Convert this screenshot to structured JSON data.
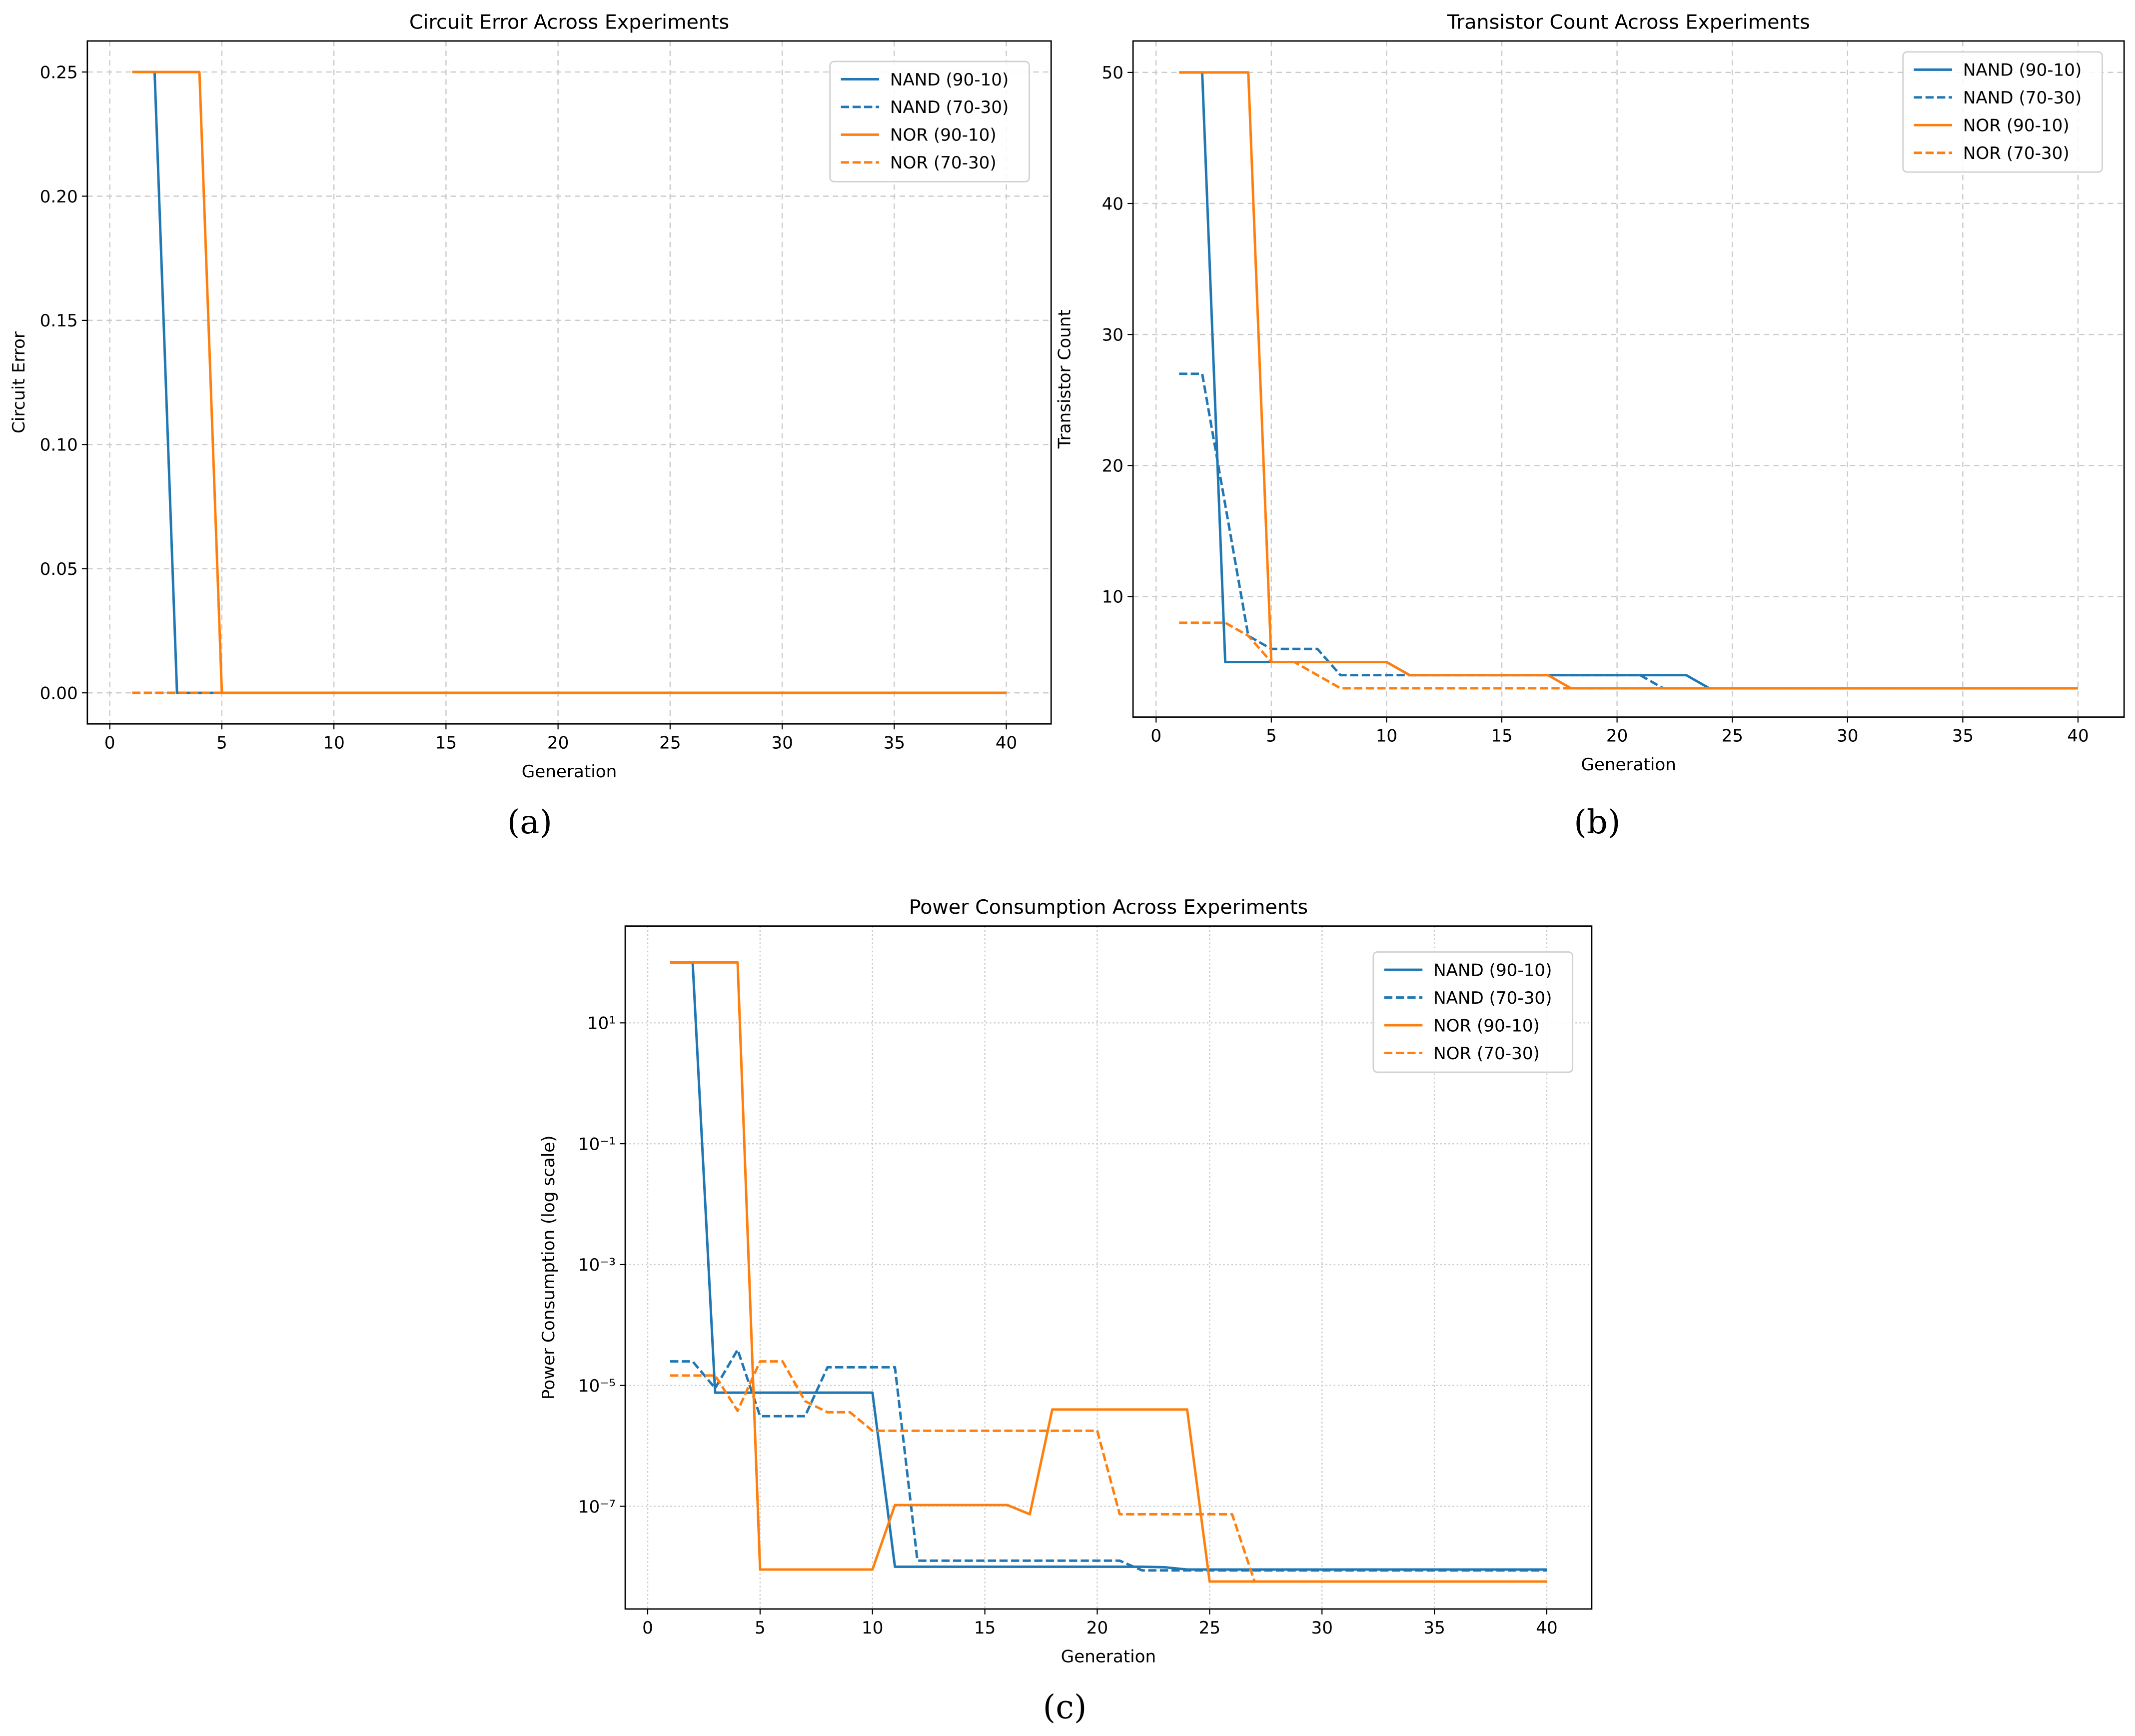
{
  "chart_data": [
    {
      "type": "line",
      "title": "Circuit Error Across Experiments",
      "xlabel": "Generation",
      "ylabel": "Circuit Error",
      "caption": "(a)",
      "x": [
        1,
        2,
        3,
        4,
        5,
        6,
        7,
        8,
        9,
        10,
        11,
        12,
        13,
        14,
        15,
        16,
        17,
        18,
        19,
        20,
        21,
        22,
        23,
        24,
        25,
        26,
        27,
        28,
        29,
        30,
        31,
        32,
        33,
        34,
        35,
        36,
        37,
        38,
        39,
        40
      ],
      "xlim": [
        -1,
        42
      ],
      "ylim": [
        -0.0125,
        0.2625
      ],
      "yscale": "linear",
      "xticks": [
        0,
        5,
        10,
        15,
        20,
        25,
        30,
        35,
        40
      ],
      "yticks": [
        0,
        0.05,
        0.1,
        0.15,
        0.2,
        0.25
      ],
      "yticklabels": [
        "0.00",
        "0.05",
        "0.10",
        "0.15",
        "0.20",
        "0.25"
      ],
      "grid": "dashed",
      "legend": "top-right",
      "series": [
        {
          "name": "NAND (90-10)",
          "color": "#1f77b4",
          "style": "solid",
          "values": [
            0.25,
            0.25,
            0,
            0,
            0,
            0,
            0,
            0,
            0,
            0,
            0,
            0,
            0,
            0,
            0,
            0,
            0,
            0,
            0,
            0,
            0,
            0,
            0,
            0,
            0,
            0,
            0,
            0,
            0,
            0,
            0,
            0,
            0,
            0,
            0,
            0,
            0,
            0,
            0,
            0
          ]
        },
        {
          "name": "NAND (70-30)",
          "color": "#1f77b4",
          "style": "dashed",
          "values": [
            0,
            0,
            0,
            0,
            0,
            0,
            0,
            0,
            0,
            0,
            0,
            0,
            0,
            0,
            0,
            0,
            0,
            0,
            0,
            0,
            0,
            0,
            0,
            0,
            0,
            0,
            0,
            0,
            0,
            0,
            0,
            0,
            0,
            0,
            0,
            0,
            0,
            0,
            0,
            0
          ]
        },
        {
          "name": "NOR (90-10)",
          "color": "#ff7f0e",
          "style": "solid",
          "values": [
            0.25,
            0.25,
            0.25,
            0.25,
            0,
            0,
            0,
            0,
            0,
            0,
            0,
            0,
            0,
            0,
            0,
            0,
            0,
            0,
            0,
            0,
            0,
            0,
            0,
            0,
            0,
            0,
            0,
            0,
            0,
            0,
            0,
            0,
            0,
            0,
            0,
            0,
            0,
            0,
            0,
            0
          ]
        },
        {
          "name": "NOR (70-30)",
          "color": "#ff7f0e",
          "style": "dashed",
          "values": [
            0,
            0,
            0,
            0,
            0,
            0,
            0,
            0,
            0,
            0,
            0,
            0,
            0,
            0,
            0,
            0,
            0,
            0,
            0,
            0,
            0,
            0,
            0,
            0,
            0,
            0,
            0,
            0,
            0,
            0,
            0,
            0,
            0,
            0,
            0,
            0,
            0,
            0,
            0,
            0
          ]
        }
      ]
    },
    {
      "type": "line",
      "title": "Transistor Count Across Experiments",
      "xlabel": "Generation",
      "ylabel": "Transistor Count",
      "caption": "(b)",
      "x": [
        1,
        2,
        3,
        4,
        5,
        6,
        7,
        8,
        9,
        10,
        11,
        12,
        13,
        14,
        15,
        16,
        17,
        18,
        19,
        20,
        21,
        22,
        23,
        24,
        25,
        26,
        27,
        28,
        29,
        30,
        31,
        32,
        33,
        34,
        35,
        36,
        37,
        38,
        39,
        40
      ],
      "xlim": [
        -1,
        42
      ],
      "ylim": [
        0.8,
        52.4
      ],
      "yscale": "linear",
      "xticks": [
        0,
        5,
        10,
        15,
        20,
        25,
        30,
        35,
        40
      ],
      "yticks": [
        10,
        20,
        30,
        40,
        50
      ],
      "yticklabels": [
        "10",
        "20",
        "30",
        "40",
        "50"
      ],
      "grid": "dashed",
      "legend": "top-right",
      "series": [
        {
          "name": "NAND (90-10)",
          "color": "#1f77b4",
          "style": "solid",
          "values": [
            50,
            50,
            5,
            5,
            5,
            5,
            5,
            5,
            5,
            5,
            4,
            4,
            4,
            4,
            4,
            4,
            4,
            4,
            4,
            4,
            4,
            4,
            4,
            3,
            3,
            3,
            3,
            3,
            3,
            3,
            3,
            3,
            3,
            3,
            3,
            3,
            3,
            3,
            3,
            3
          ]
        },
        {
          "name": "NAND (70-30)",
          "color": "#1f77b4",
          "style": "dashed",
          "values": [
            27,
            27,
            17,
            7,
            6,
            6,
            6,
            4,
            4,
            4,
            4,
            4,
            4,
            4,
            4,
            4,
            4,
            4,
            4,
            4,
            4,
            3,
            3,
            3,
            3,
            3,
            3,
            3,
            3,
            3,
            3,
            3,
            3,
            3,
            3,
            3,
            3,
            3,
            3,
            3
          ]
        },
        {
          "name": "NOR (90-10)",
          "color": "#ff7f0e",
          "style": "solid",
          "values": [
            50,
            50,
            50,
            50,
            5,
            5,
            5,
            5,
            5,
            5,
            4,
            4,
            4,
            4,
            4,
            4,
            4,
            3,
            3,
            3,
            3,
            3,
            3,
            3,
            3,
            3,
            3,
            3,
            3,
            3,
            3,
            3,
            3,
            3,
            3,
            3,
            3,
            3,
            3,
            3
          ]
        },
        {
          "name": "NOR (70-30)",
          "color": "#ff7f0e",
          "style": "dashed",
          "values": [
            8,
            8,
            8,
            7,
            5,
            5,
            4,
            3,
            3,
            3,
            3,
            3,
            3,
            3,
            3,
            3,
            3,
            3,
            3,
            3,
            3,
            3,
            3,
            3,
            3,
            3,
            3,
            3,
            3,
            3,
            3,
            3,
            3,
            3,
            3,
            3,
            3,
            3,
            3,
            3
          ]
        }
      ]
    },
    {
      "type": "line",
      "title": "Power Consumption Across Experiments",
      "xlabel": "Generation",
      "ylabel": "Power Consumption (log scale)",
      "caption": "(c)",
      "x": [
        1,
        2,
        3,
        4,
        5,
        6,
        7,
        8,
        9,
        10,
        11,
        12,
        13,
        14,
        15,
        16,
        17,
        18,
        19,
        20,
        21,
        22,
        23,
        24,
        25,
        26,
        27,
        28,
        29,
        30,
        31,
        32,
        33,
        34,
        35,
        36,
        37,
        38,
        39,
        40
      ],
      "xlim": [
        -1,
        42
      ],
      "ylim": [
        2e-09,
        400
      ],
      "yscale": "log",
      "xticks": [
        0,
        5,
        10,
        15,
        20,
        25,
        30,
        35,
        40
      ],
      "yticks": [
        1e-07,
        1e-05,
        0.001,
        0.1,
        10
      ],
      "yticklabels": [
        "10⁻⁷",
        "10⁻⁵",
        "10⁻³",
        "10⁻¹",
        "10¹"
      ],
      "grid": "dotted",
      "legend": "top-right",
      "series": [
        {
          "name": "NAND (90-10)",
          "color": "#1f77b4",
          "style": "solid",
          "values": [
            100,
            100,
            7.6e-06,
            7.6e-06,
            7.6e-06,
            7.6e-06,
            7.6e-06,
            7.6e-06,
            7.6e-06,
            7.6e-06,
            1e-08,
            1e-08,
            1e-08,
            1e-08,
            1e-08,
            1e-08,
            1e-08,
            1e-08,
            1e-08,
            1e-08,
            1e-08,
            1e-08,
            9.8e-09,
            9e-09,
            9e-09,
            9e-09,
            9e-09,
            9e-09,
            9e-09,
            9e-09,
            9e-09,
            9e-09,
            9e-09,
            9e-09,
            9e-09,
            9e-09,
            9e-09,
            9e-09,
            9e-09,
            9e-09
          ]
        },
        {
          "name": "NAND (70-30)",
          "color": "#1f77b4",
          "style": "dashed",
          "values": [
            2.5e-05,
            2.5e-05,
            9e-06,
            3.9e-05,
            3.1e-06,
            3.1e-06,
            3.1e-06,
            2e-05,
            2e-05,
            2e-05,
            2e-05,
            1.26e-08,
            1.26e-08,
            1.26e-08,
            1.26e-08,
            1.26e-08,
            1.26e-08,
            1.26e-08,
            1.26e-08,
            1.26e-08,
            1.26e-08,
            8.7e-09,
            8.7e-09,
            8.7e-09,
            8.7e-09,
            8.7e-09,
            8.7e-09,
            8.7e-09,
            8.7e-09,
            8.7e-09,
            8.7e-09,
            8.7e-09,
            8.7e-09,
            8.7e-09,
            8.7e-09,
            8.7e-09,
            8.7e-09,
            8.7e-09,
            8.7e-09,
            8.7e-09
          ]
        },
        {
          "name": "NOR (90-10)",
          "color": "#ff7f0e",
          "style": "solid",
          "values": [
            100,
            100,
            100,
            100,
            9e-09,
            9e-09,
            9e-09,
            9e-09,
            9e-09,
            9e-09,
            1.05e-07,
            1.05e-07,
            1.05e-07,
            1.05e-07,
            1.05e-07,
            1.05e-07,
            7.4e-08,
            4e-06,
            4e-06,
            4e-06,
            4e-06,
            4e-06,
            4e-06,
            4e-06,
            5.7e-09,
            5.7e-09,
            5.7e-09,
            5.7e-09,
            5.7e-09,
            5.7e-09,
            5.7e-09,
            5.7e-09,
            5.7e-09,
            5.7e-09,
            5.7e-09,
            5.7e-09,
            5.7e-09,
            5.7e-09,
            5.7e-09,
            5.7e-09
          ]
        },
        {
          "name": "NOR (70-30)",
          "color": "#ff7f0e",
          "style": "dashed",
          "values": [
            1.46e-05,
            1.46e-05,
            1.46e-05,
            3.8e-06,
            2.5e-05,
            2.5e-05,
            5.5e-06,
            3.6e-06,
            3.6e-06,
            1.78e-06,
            1.78e-06,
            1.78e-06,
            1.78e-06,
            1.78e-06,
            1.78e-06,
            1.78e-06,
            1.78e-06,
            1.78e-06,
            1.78e-06,
            1.78e-06,
            7.4e-08,
            7.4e-08,
            7.4e-08,
            7.4e-08,
            7.4e-08,
            7.4e-08,
            5.7e-09,
            5.7e-09,
            5.7e-09,
            5.7e-09,
            5.7e-09,
            5.7e-09,
            5.7e-09,
            5.7e-09,
            5.7e-09,
            5.7e-09,
            5.7e-09,
            5.7e-09,
            5.7e-09,
            5.7e-09
          ]
        }
      ]
    }
  ]
}
